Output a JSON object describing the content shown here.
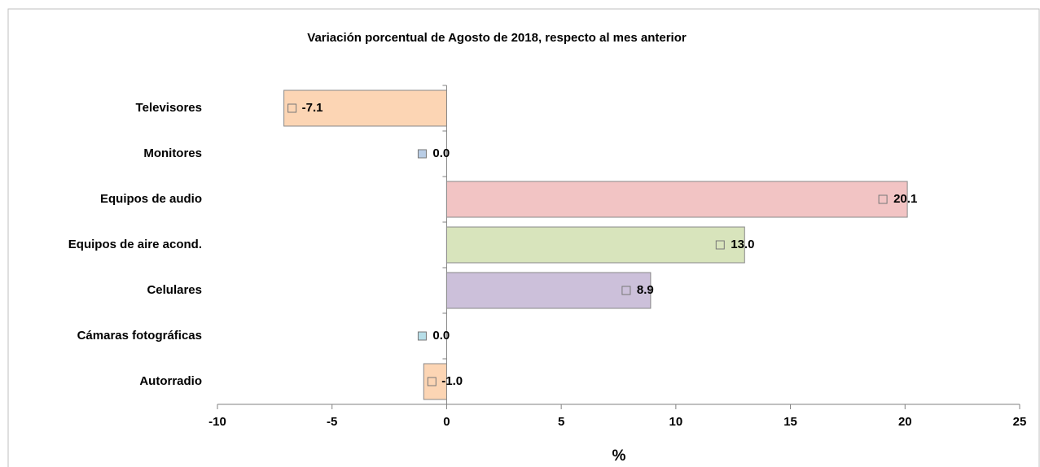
{
  "chart_data": {
    "type": "bar",
    "orientation": "horizontal",
    "title": "Variación porcentual de Agosto de 2018, respecto al mes anterior",
    "categories": [
      "Televisores",
      "Monitores",
      "Equipos de audio",
      "Equipos de aire acond.",
      "Celulares",
      "Cámaras fotográficas",
      "Autorradio"
    ],
    "values": [
      -7.1,
      0.0,
      20.1,
      13.0,
      8.9,
      0.0,
      -1.0
    ],
    "value_labels": [
      "-7.1",
      "0.0",
      "20.1",
      "13.0",
      "8.9",
      "0.0",
      "-1.0"
    ],
    "colors": [
      "#fcd5b4",
      "#b9cde5",
      "#f2c4c4",
      "#d8e4bc",
      "#ccc0da",
      "#b7dee8",
      "#fcd5b4"
    ],
    "xlabel": "%",
    "xlim": [
      -10,
      25
    ],
    "xticks": [
      -10,
      -5,
      0,
      5,
      10,
      15,
      20,
      25
    ],
    "grid": false
  }
}
